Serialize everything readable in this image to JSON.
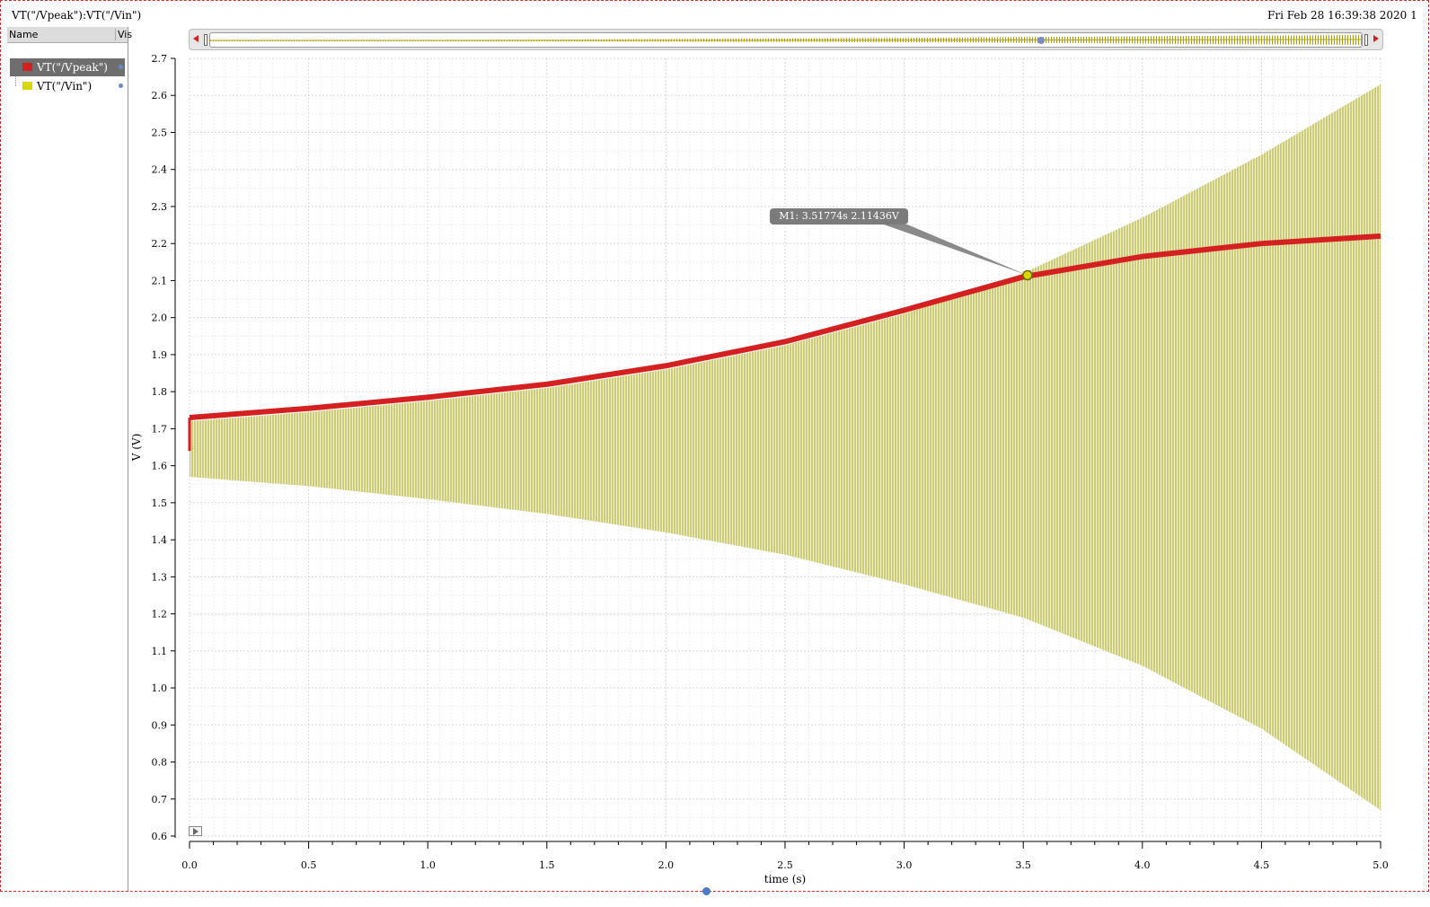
{
  "window": {
    "plot_title": "VT(\"/Vpeak\"):VT(\"/Vin\")",
    "timestamp": "Fri Feb 28 16:39:38 2020  1"
  },
  "legend": {
    "header_name": "Name",
    "header_visible": "Vis",
    "items": [
      {
        "label": "VT(\"/Vpeak\")",
        "color": "#d42020",
        "selected": true
      },
      {
        "label": "VT(\"/Vin\")",
        "color": "#d8d800",
        "selected": false
      }
    ]
  },
  "marker": {
    "label": "M1: 3.51774s 2.11436V",
    "x": 3.51774,
    "y": 2.11436
  },
  "chart_data": {
    "type": "line",
    "xlabel": "time (s)",
    "ylabel": "V (V)",
    "xlim": [
      0.0,
      5.0
    ],
    "ylim": [
      0.6,
      2.7
    ],
    "x_ticks": [
      "0.0",
      "0.5",
      "1.0",
      "1.5",
      "2.0",
      "2.5",
      "3.0",
      "3.5",
      "4.0",
      "4.5",
      "5.0"
    ],
    "y_ticks": [
      "0.6",
      "0.7",
      "0.8",
      "0.9",
      "1.0",
      "1.1",
      "1.2",
      "1.3",
      "1.4",
      "1.5",
      "1.6",
      "1.7",
      "1.8",
      "1.9",
      "2.0",
      "2.1",
      "2.2",
      "2.3",
      "2.4",
      "2.5",
      "2.6",
      "2.7"
    ],
    "grid": true,
    "series": [
      {
        "name": "VT(\"/Vpeak\")",
        "color": "#d42020",
        "x": [
          0.0,
          0.5,
          1.0,
          1.5,
          2.0,
          2.5,
          3.0,
          3.5,
          4.0,
          4.5,
          5.0
        ],
        "values": [
          1.73,
          1.755,
          1.785,
          1.82,
          1.87,
          1.935,
          2.02,
          2.11,
          2.165,
          2.2,
          2.22
        ]
      },
      {
        "name": "VT(\"/Vin\")",
        "color": "#c4c44c",
        "x": [
          0.0,
          0.5,
          1.0,
          1.5,
          2.0,
          2.5,
          3.0,
          3.5,
          4.0,
          4.5,
          5.0
        ],
        "upper": [
          1.72,
          1.745,
          1.775,
          1.81,
          1.86,
          1.925,
          2.01,
          2.12,
          2.27,
          2.44,
          2.63
        ],
        "lower": [
          1.57,
          1.545,
          1.51,
          1.47,
          1.42,
          1.36,
          1.28,
          1.19,
          1.06,
          0.89,
          0.67
        ]
      }
    ]
  }
}
